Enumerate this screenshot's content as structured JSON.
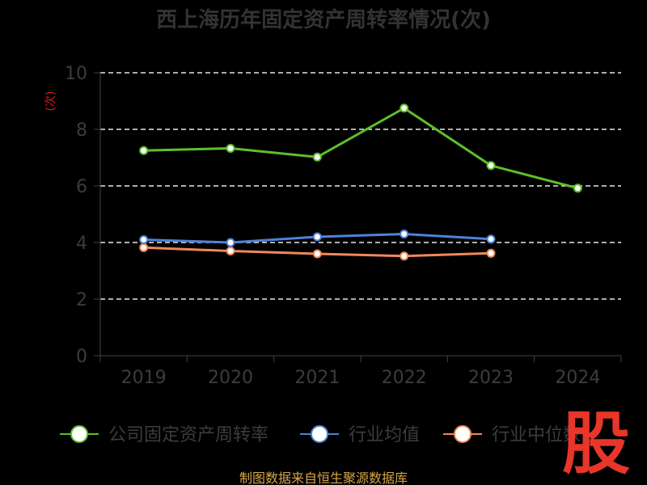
{
  "chart_data": {
    "type": "line",
    "title": "西上海历年固定资产周转率情况(次)",
    "unit_label": "(次)",
    "categories": [
      "2019",
      "2020",
      "2021",
      "2022",
      "2023",
      "2024"
    ],
    "ylim": [
      0,
      10
    ],
    "yticks": [
      0,
      2,
      4,
      6,
      8,
      10
    ],
    "grid": true,
    "legend_position": "bottom",
    "series": [
      {
        "name": "公司固定资产周转率",
        "color": "#5cc02a",
        "values": [
          7.25,
          7.33,
          7.02,
          8.75,
          6.72,
          5.92
        ]
      },
      {
        "name": "行业均值",
        "color": "#4f82d9",
        "values": [
          4.1,
          4.0,
          4.2,
          4.3,
          4.12,
          null
        ]
      },
      {
        "name": "行业中位数",
        "color": "#f0885a",
        "values": [
          3.82,
          3.7,
          3.6,
          3.52,
          3.62,
          null
        ]
      }
    ],
    "source": "制图数据来自恒生聚源数据库",
    "logo": "股"
  }
}
